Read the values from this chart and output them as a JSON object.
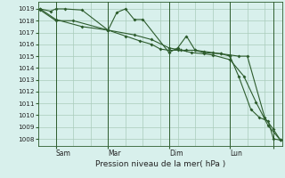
{
  "bg_color": "#d8f0ec",
  "line_color": "#2d5c2d",
  "grid_color": "#aaccbb",
  "xlabel": "Pression niveau de la mer( hPa )",
  "ylim": [
    1007.4,
    1019.6
  ],
  "yticks": [
    1008,
    1009,
    1010,
    1011,
    1012,
    1013,
    1014,
    1015,
    1016,
    1017,
    1018,
    1019
  ],
  "xlim": [
    0,
    14
  ],
  "num_vert_grid": 14,
  "day_vlines": [
    1.0,
    4.0,
    7.5,
    11.0,
    13.5
  ],
  "day_tick_x": [
    1.0,
    4.0,
    7.5,
    11.0,
    13.5
  ],
  "day_labels": [
    "Sam",
    "Mar",
    "Dim",
    "Lun",
    ""
  ],
  "line1_x": [
    0.1,
    1.0,
    2.0,
    4.0,
    5.5,
    6.5,
    7.5,
    8.2,
    8.8,
    9.5,
    10.0,
    11.0,
    11.8,
    12.5,
    13.2,
    13.9
  ],
  "line1_y": [
    1018.9,
    1018.0,
    1018.0,
    1017.2,
    1016.8,
    1016.4,
    1015.7,
    1015.5,
    1015.3,
    1015.2,
    1015.1,
    1014.7,
    1013.3,
    1011.1,
    1009.1,
    1007.9
  ],
  "line2_x": [
    0.1,
    0.7,
    1.0,
    1.5,
    2.5,
    4.0,
    4.5,
    5.0,
    5.5,
    6.0,
    7.5,
    8.0,
    8.5,
    9.0,
    9.5,
    10.0,
    10.5,
    11.0,
    11.5,
    12.0,
    13.0,
    13.5,
    13.9
  ],
  "line2_y": [
    1019.0,
    1018.8,
    1019.0,
    1019.0,
    1018.9,
    1017.2,
    1018.7,
    1019.0,
    1018.1,
    1018.1,
    1015.3,
    1015.7,
    1016.7,
    1015.5,
    1015.4,
    1015.3,
    1015.2,
    1015.1,
    1015.0,
    1015.0,
    1009.8,
    1008.8,
    1007.9
  ],
  "line3_x": [
    0.1,
    1.0,
    2.5,
    4.0,
    5.0,
    5.8,
    6.5,
    7.0,
    7.5,
    8.0,
    8.5,
    9.0,
    9.5,
    10.5,
    11.0,
    11.5,
    12.2,
    12.7,
    13.2,
    13.5,
    13.9
  ],
  "line3_y": [
    1019.0,
    1018.1,
    1017.5,
    1017.2,
    1016.7,
    1016.3,
    1016.0,
    1015.6,
    1015.5,
    1015.5,
    1015.5,
    1015.5,
    1015.3,
    1015.2,
    1015.0,
    1013.3,
    1010.5,
    1009.8,
    1009.5,
    1008.0,
    1007.9
  ]
}
